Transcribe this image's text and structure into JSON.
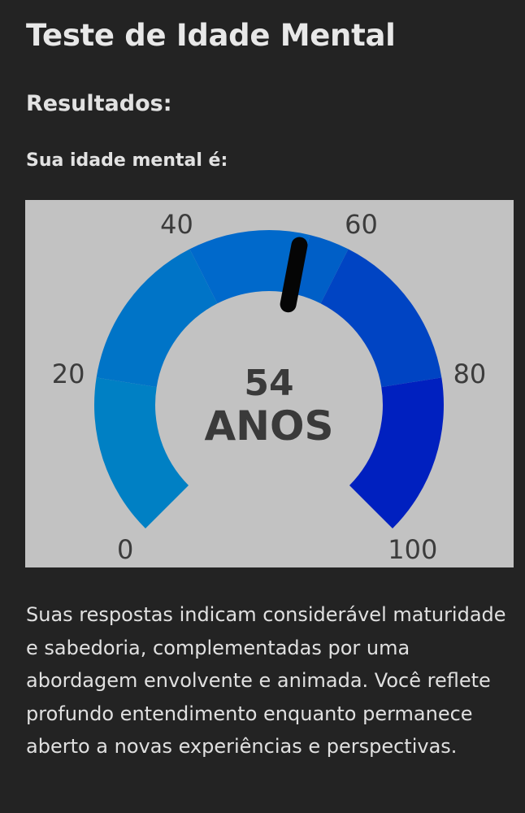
{
  "page": {
    "title": "Teste de Idade Mental",
    "results_heading": "Resultados:",
    "age_label": "Sua idade mental é:",
    "description": "Suas respostas indicam considerável maturidade e sabedoria, complementadas por uma abordagem envolvente e animada. Você reflete profundo entendimento enquanto permanece aberto a novas experiências e perspectivas."
  },
  "chart_data": {
    "type": "gauge",
    "min": 0,
    "max": 100,
    "value": 54,
    "value_label": "54",
    "unit_label": "ANOS",
    "tick_labels": [
      "0",
      "20",
      "40",
      "60",
      "80",
      "100"
    ],
    "bands": [
      {
        "from": 0,
        "to": 20,
        "color": "#0080c4"
      },
      {
        "from": 20,
        "to": 40,
        "color": "#0074c7"
      },
      {
        "from": 40,
        "to": 55,
        "color": "#0069cb"
      },
      {
        "from": 55,
        "to": 60,
        "color": "#005fc7"
      },
      {
        "from": 60,
        "to": 80,
        "color": "#0044c3"
      },
      {
        "from": 80,
        "to": 100,
        "color": "#0020bf"
      }
    ],
    "needle_color": "#050505"
  }
}
